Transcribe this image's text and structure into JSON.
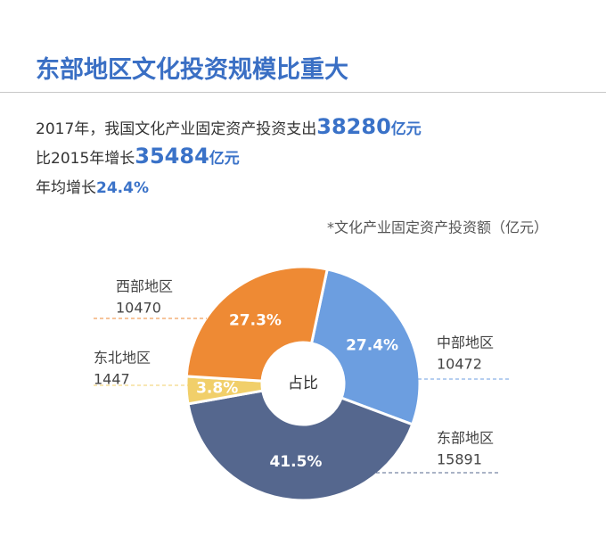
{
  "header": {
    "title": "东部地区文化投资规模比重大"
  },
  "summary": [
    {
      "text": "2017年，我国文化产业固定资产投资支出",
      "value": 38280,
      "unit": "亿元"
    },
    {
      "text": "比2015年增长",
      "value": 35484,
      "unit": "亿元"
    },
    {
      "text": "年均增长",
      "value_label": "24.4%"
    }
  ],
  "chart_data": {
    "type": "donut",
    "note": "*文化产业固定资产投资额（亿元）",
    "center_label": "占比",
    "categories": [
      "中部地区",
      "东部地区",
      "东北地区",
      "西部地区"
    ],
    "values": [
      10472,
      15891,
      1447,
      10470
    ],
    "shares": [
      27.4,
      41.5,
      3.8,
      27.3
    ],
    "share_labels": [
      "27.4%",
      "41.5%",
      "3.8%",
      "27.3%"
    ],
    "colors": [
      "#6c9ee0",
      "#55678e",
      "#f1cf6a",
      "#ee8a34"
    ]
  }
}
